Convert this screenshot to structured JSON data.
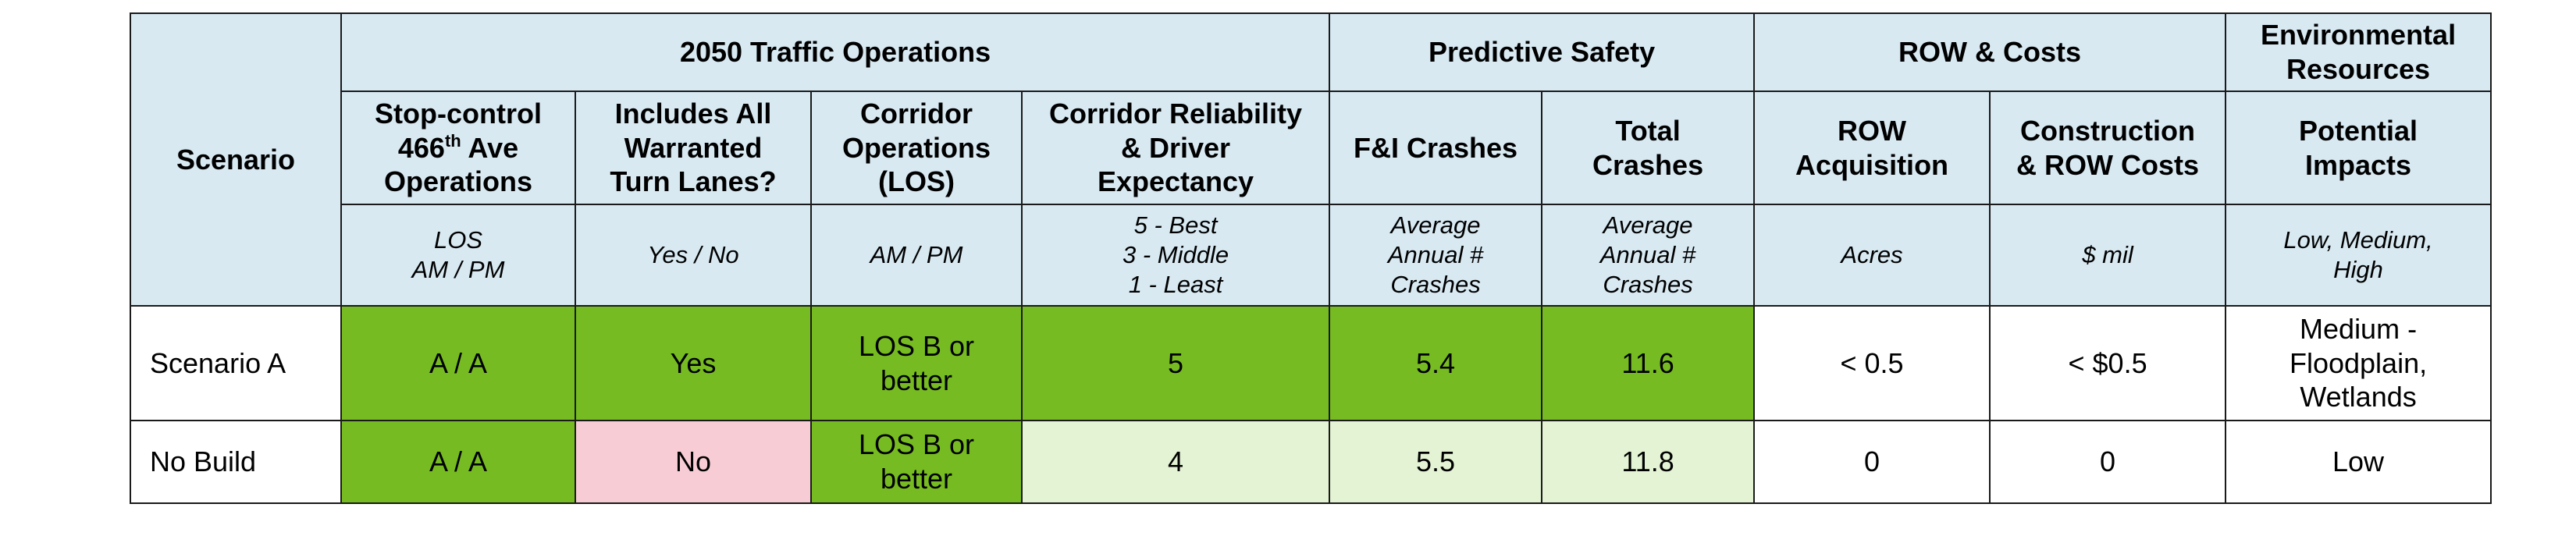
{
  "colors": {
    "header_bg": "#d8e9f2",
    "best": "#77bb22",
    "good": "#e3f3d3",
    "poor": "#f8ccd4",
    "neutral": "#ffffff",
    "border": "#1a1a1a"
  },
  "groups": {
    "traffic": "2050 Traffic Operations",
    "safety": "Predictive Safety",
    "row": "ROW & Costs",
    "env": [
      "Environmental",
      "Resources"
    ]
  },
  "columns": {
    "scenario": "Scenario",
    "stop_control": {
      "line1": "Stop-control",
      "line2_num": "466",
      "line2_sup": "th",
      "line2_rest": " Ave",
      "line3": "Operations"
    },
    "turn_lanes": [
      "Includes All",
      "Warranted",
      "Turn Lanes?"
    ],
    "corridor_ops": [
      "Corridor",
      "Operations",
      "(LOS)"
    ],
    "reliability": [
      "Corridor Reliability",
      "& Driver",
      "Expectancy"
    ],
    "fi_crashes": "F&I Crashes",
    "total_crashes": [
      "Total",
      "Crashes"
    ],
    "row_acq": [
      "ROW",
      "Acquisition"
    ],
    "cost": [
      "Construction",
      "& ROW Costs"
    ],
    "env_impacts": [
      "Potential",
      "Impacts"
    ]
  },
  "units": {
    "stop_control": [
      "LOS",
      "AM / PM"
    ],
    "turn_lanes": "Yes / No",
    "corridor_ops": "AM / PM",
    "reliability": [
      "5 - Best",
      "3 - Middle",
      "1 - Least"
    ],
    "fi_crashes": [
      "Average",
      "Annual #",
      "Crashes"
    ],
    "total_crashes": [
      "Average",
      "Annual #",
      "Crashes"
    ],
    "row_acq": "Acres",
    "cost": "$ mil",
    "env_impacts": [
      "Low, Medium,",
      "High"
    ]
  },
  "rows": [
    {
      "scenario": "Scenario A",
      "stop_control": "A / A",
      "turn_lanes": "Yes",
      "corridor_ops": [
        "LOS B or",
        "better"
      ],
      "reliability": "5",
      "fi_crashes": "5.4",
      "total_crashes": "11.6",
      "row_acq": "< 0.5",
      "cost": "< $0.5",
      "env_impacts": [
        "Medium -",
        "Floodplain,",
        "Wetlands"
      ]
    },
    {
      "scenario": "No Build",
      "stop_control": "A / A",
      "turn_lanes": "No",
      "corridor_ops": [
        "LOS B or",
        "better"
      ],
      "reliability": "4",
      "fi_crashes": "5.5",
      "total_crashes": "11.8",
      "row_acq": "0",
      "cost": "0",
      "env_impacts": [
        "Low"
      ]
    }
  ]
}
